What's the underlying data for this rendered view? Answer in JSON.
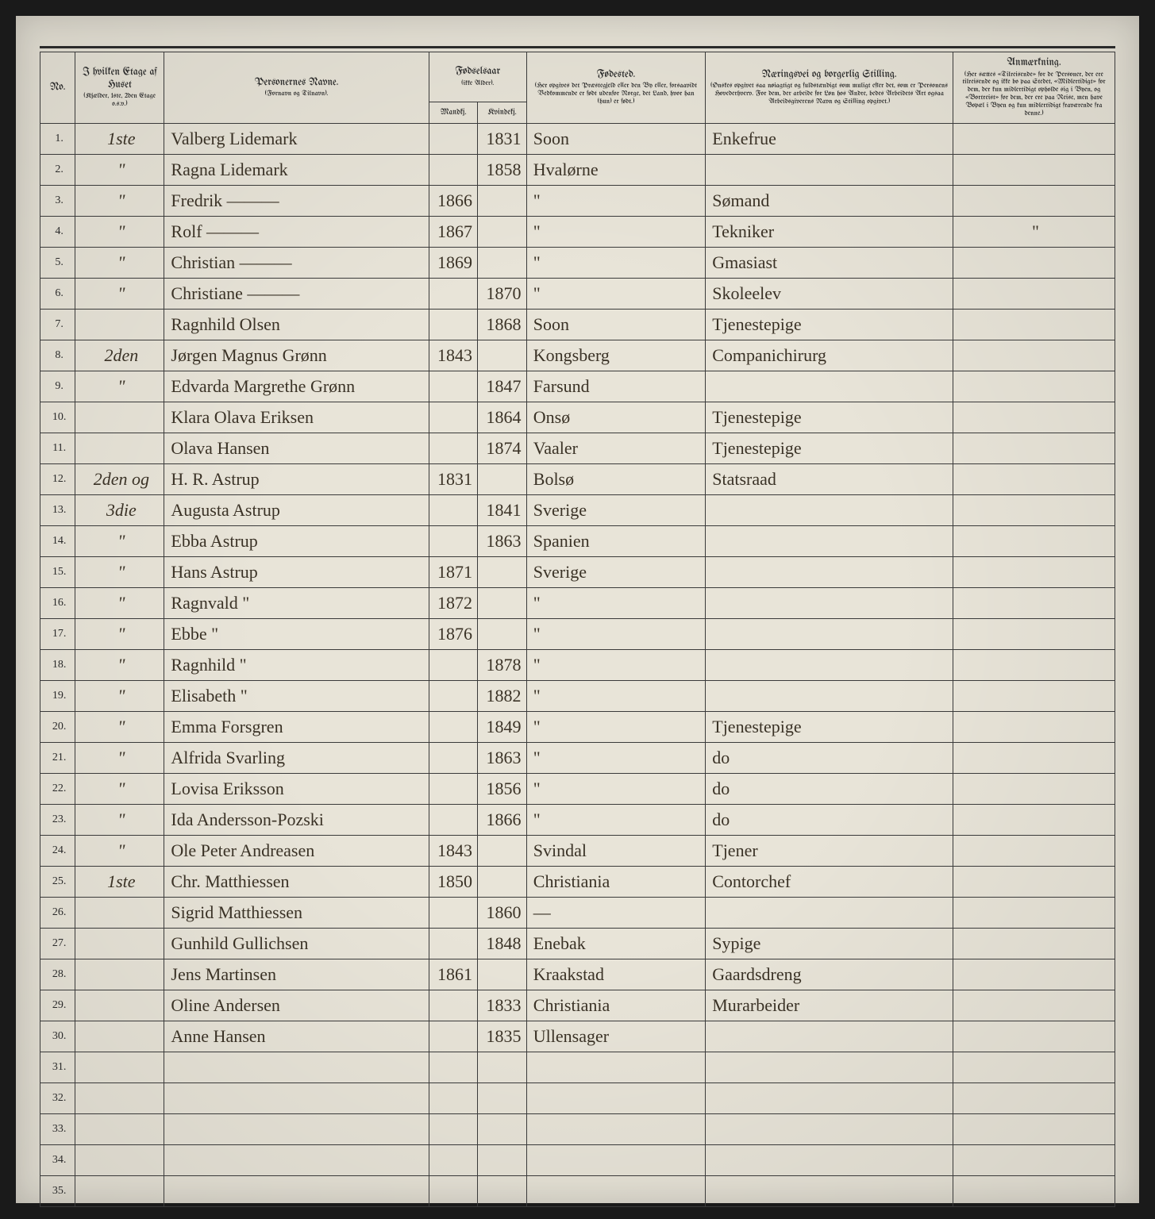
{
  "headers": {
    "no": "No.",
    "floor": "I hvilken Etage af Huset",
    "floor_sub": "(Kjælder, 1ste, 2den Etage o.s.v.)",
    "name": "Personernes Navne.",
    "name_sub": "(Fornavn og Tilnavn).",
    "birthyear": "Fødselsaar",
    "birthyear_sub": "(ikke Alder).",
    "male": "Mandkj.",
    "female": "Kvindekj.",
    "birthplace": "Fødested.",
    "birthplace_sub": "(Her opgives det Præstegjeld eller den By eller, forsaavidt Vedkommende er født udenfor Norge, det Land, hvor han (hun) er født.)",
    "occupation": "Næringsvei og borgerlig Stilling.",
    "occupation_sub": "(Ønskes opgivet saa nøiagtigt og fuldstændigt som muligt efter det, som er Personens Hovederhverv. For dem, der arbeide for Løn hos Andre, bedes Arbeidets Art ogsaa Arbeidsgiverens Navn og Stilling opgivet.)",
    "remarks": "Anmærkning.",
    "remarks_sub": "(Her sættes «Tilreisende» for de Personer, der ere tilreisende og ikke bo paa Stedet, «Midlertidigt» for dem, der kun midlertidigt opholde sig i Byen, og «Bortreist» for dem, der ere paa Reise, men have Bopæl i Byen og kun midlertidigt fraværende fra denne.)"
  },
  "rows": [
    {
      "n": "1.",
      "floor": "1ste",
      "name": "Valberg Lidemark",
      "ym": "",
      "yf": "1831",
      "place": "Soon",
      "occ": "Enkefrue",
      "rem": ""
    },
    {
      "n": "2.",
      "floor": "\"",
      "name": "Ragna Lidemark",
      "ym": "",
      "yf": "1858",
      "place": "Hvalørne",
      "occ": "",
      "rem": ""
    },
    {
      "n": "3.",
      "floor": "\"",
      "name": "Fredrik ———",
      "ym": "1866",
      "yf": "",
      "place": "\"",
      "occ": "Sømand",
      "rem": ""
    },
    {
      "n": "4.",
      "floor": "\"",
      "name": "Rolf ———",
      "ym": "1867",
      "yf": "",
      "place": "\"",
      "occ": "Tekniker",
      "rem": "\""
    },
    {
      "n": "5.",
      "floor": "\"",
      "name": "Christian ———",
      "ym": "1869",
      "yf": "",
      "place": "\"",
      "occ": "Gmasiast",
      "rem": ""
    },
    {
      "n": "6.",
      "floor": "\"",
      "name": "Christiane ———",
      "ym": "",
      "yf": "1870",
      "place": "\"",
      "occ": "Skoleelev",
      "rem": ""
    },
    {
      "n": "7.",
      "floor": "",
      "name": "Ragnhild Olsen",
      "ym": "",
      "yf": "1868",
      "place": "Soon",
      "occ": "Tjenestepige",
      "rem": ""
    },
    {
      "n": "8.",
      "floor": "2den",
      "name": "Jørgen Magnus Grønn",
      "ym": "1843",
      "yf": "",
      "place": "Kongsberg",
      "occ": "Companichirurg",
      "rem": ""
    },
    {
      "n": "9.",
      "floor": "\"",
      "name": "Edvarda Margrethe Grønn",
      "ym": "",
      "yf": "1847",
      "place": "Farsund",
      "occ": "",
      "rem": ""
    },
    {
      "n": "10.",
      "floor": "",
      "name": "Klara Olava Eriksen",
      "ym": "",
      "yf": "1864",
      "place": "Onsø",
      "occ": "Tjenestepige",
      "rem": ""
    },
    {
      "n": "11.",
      "floor": "",
      "name": "Olava Hansen",
      "ym": "",
      "yf": "1874",
      "place": "Vaaler",
      "occ": "Tjenestepige",
      "rem": ""
    },
    {
      "n": "12.",
      "floor": "2den og",
      "name": "H. R. Astrup",
      "ym": "1831",
      "yf": "",
      "place": "Bolsø",
      "occ": "Statsraad",
      "rem": ""
    },
    {
      "n": "13.",
      "floor": "3die",
      "name": "Augusta Astrup",
      "ym": "",
      "yf": "1841",
      "place": "Sverige",
      "occ": "",
      "rem": ""
    },
    {
      "n": "14.",
      "floor": "\"",
      "name": "Ebba Astrup",
      "ym": "",
      "yf": "1863",
      "place": "Spanien",
      "occ": "",
      "rem": ""
    },
    {
      "n": "15.",
      "floor": "\"",
      "name": "Hans Astrup",
      "ym": "1871",
      "yf": "",
      "place": "Sverige",
      "occ": "",
      "rem": ""
    },
    {
      "n": "16.",
      "floor": "\"",
      "name": "Ragnvald \"",
      "ym": "1872",
      "yf": "",
      "place": "\"",
      "occ": "",
      "rem": ""
    },
    {
      "n": "17.",
      "floor": "\"",
      "name": "Ebbe \"",
      "ym": "1876",
      "yf": "",
      "place": "\"",
      "occ": "",
      "rem": ""
    },
    {
      "n": "18.",
      "floor": "\"",
      "name": "Ragnhild \"",
      "ym": "",
      "yf": "1878",
      "place": "\"",
      "occ": "",
      "rem": ""
    },
    {
      "n": "19.",
      "floor": "\"",
      "name": "Elisabeth \"",
      "ym": "",
      "yf": "1882",
      "place": "\"",
      "occ": "",
      "rem": ""
    },
    {
      "n": "20.",
      "floor": "\"",
      "name": "Emma Forsgren",
      "ym": "",
      "yf": "1849",
      "place": "\"",
      "occ": "Tjenestepige",
      "rem": ""
    },
    {
      "n": "21.",
      "floor": "\"",
      "name": "Alfrida Svarling",
      "ym": "",
      "yf": "1863",
      "place": "\"",
      "occ": "do",
      "rem": ""
    },
    {
      "n": "22.",
      "floor": "\"",
      "name": "Lovisa Eriksson",
      "ym": "",
      "yf": "1856",
      "place": "\"",
      "occ": "do",
      "rem": ""
    },
    {
      "n": "23.",
      "floor": "\"",
      "name": "Ida Andersson-Pozski",
      "ym": "",
      "yf": "1866",
      "place": "\"",
      "occ": "do",
      "rem": ""
    },
    {
      "n": "24.",
      "floor": "\"",
      "name": "Ole Peter Andreasen",
      "ym": "1843",
      "yf": "",
      "place": "Svindal",
      "occ": "Tjener",
      "rem": ""
    },
    {
      "n": "25.",
      "floor": "1ste",
      "name": "Chr. Matthiessen",
      "ym": "1850",
      "yf": "",
      "place": "Christiania",
      "occ": "Contorchef",
      "rem": ""
    },
    {
      "n": "26.",
      "floor": "",
      "name": "Sigrid Matthiessen",
      "ym": "",
      "yf": "1860",
      "place": "—",
      "occ": "",
      "rem": ""
    },
    {
      "n": "27.",
      "floor": "",
      "name": "Gunhild Gullichsen",
      "ym": "",
      "yf": "1848",
      "place": "Enebak",
      "occ": "Sypige",
      "rem": ""
    },
    {
      "n": "28.",
      "floor": "",
      "name": "Jens Martinsen",
      "ym": "1861",
      "yf": "",
      "place": "Kraakstad",
      "occ": "Gaardsdreng",
      "rem": ""
    },
    {
      "n": "29.",
      "floor": "",
      "name": "Oline Andersen",
      "ym": "",
      "yf": "1833",
      "place": "Christiania",
      "occ": "Murarbeider",
      "rem": ""
    },
    {
      "n": "30.",
      "floor": "",
      "name": "Anne Hansen",
      "ym": "",
      "yf": "1835",
      "place": "Ullensager",
      "occ": "",
      "rem": ""
    },
    {
      "n": "31.",
      "floor": "",
      "name": "",
      "ym": "",
      "yf": "",
      "place": "",
      "occ": "",
      "rem": ""
    },
    {
      "n": "32.",
      "floor": "",
      "name": "",
      "ym": "",
      "yf": "",
      "place": "",
      "occ": "",
      "rem": ""
    },
    {
      "n": "33.",
      "floor": "",
      "name": "",
      "ym": "",
      "yf": "",
      "place": "",
      "occ": "",
      "rem": ""
    },
    {
      "n": "34.",
      "floor": "",
      "name": "",
      "ym": "",
      "yf": "",
      "place": "",
      "occ": "",
      "rem": ""
    },
    {
      "n": "35.",
      "floor": "",
      "name": "",
      "ym": "",
      "yf": "",
      "place": "",
      "occ": "",
      "rem": ""
    }
  ]
}
